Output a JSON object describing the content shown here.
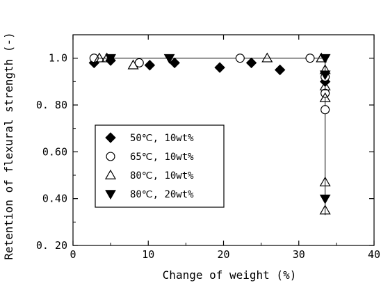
{
  "chart_data": {
    "type": "scatter",
    "xlabel": "Change of weight (%)",
    "ylabel": "Retention of flexural strength (-)",
    "xlim": [
      0,
      40
    ],
    "ylim": [
      0.2,
      1.1
    ],
    "xticks": [
      "0",
      "10",
      "20",
      "30",
      "40"
    ],
    "yticks": [
      "0. 20",
      "0.40",
      "0.60",
      "0. 80",
      "1.0"
    ],
    "xtick_values": [
      0,
      10,
      20,
      30,
      40
    ],
    "ytick_values": [
      0.2,
      0.4,
      0.6,
      0.8,
      1.0
    ],
    "grid": false,
    "legend_position": "center-left",
    "series": [
      {
        "name": "50℃, 10wt%",
        "marker": "diamond-filled",
        "points": [
          [
            2.8,
            0.98
          ],
          [
            5.0,
            0.99
          ],
          [
            10.2,
            0.97
          ],
          [
            13.5,
            0.98
          ],
          [
            19.5,
            0.96
          ],
          [
            23.7,
            0.98
          ],
          [
            27.5,
            0.95
          ],
          [
            33.5,
            0.9
          ]
        ]
      },
      {
        "name": "65℃, 10wt%",
        "marker": "circle-open",
        "points": [
          [
            2.8,
            1.0
          ],
          [
            8.8,
            0.98
          ],
          [
            22.2,
            1.0
          ],
          [
            31.5,
            1.0
          ],
          [
            33.5,
            0.92
          ],
          [
            33.5,
            0.85
          ],
          [
            33.5,
            0.78
          ]
        ]
      },
      {
        "name": "80℃, 10wt%",
        "marker": "triangle-up-open",
        "points": [
          [
            3.5,
            1.0
          ],
          [
            4.5,
            1.0
          ],
          [
            8.0,
            0.97
          ],
          [
            25.8,
            1.0
          ],
          [
            33.0,
            1.0
          ],
          [
            33.5,
            0.95
          ],
          [
            33.5,
            0.88
          ],
          [
            33.5,
            0.83
          ],
          [
            33.5,
            0.47
          ],
          [
            33.5,
            0.35
          ]
        ]
      },
      {
        "name": "80℃, 20wt%",
        "marker": "triangle-down-filled",
        "points": [
          [
            5.0,
            1.0
          ],
          [
            12.8,
            1.0
          ],
          [
            33.5,
            1.0
          ],
          [
            33.5,
            0.93
          ],
          [
            33.5,
            0.4
          ]
        ]
      }
    ],
    "trend_line": [
      [
        2.8,
        1.0
      ],
      [
        33.2,
        1.0
      ],
      [
        33.5,
        0.99
      ],
      [
        33.5,
        0.33
      ]
    ]
  }
}
